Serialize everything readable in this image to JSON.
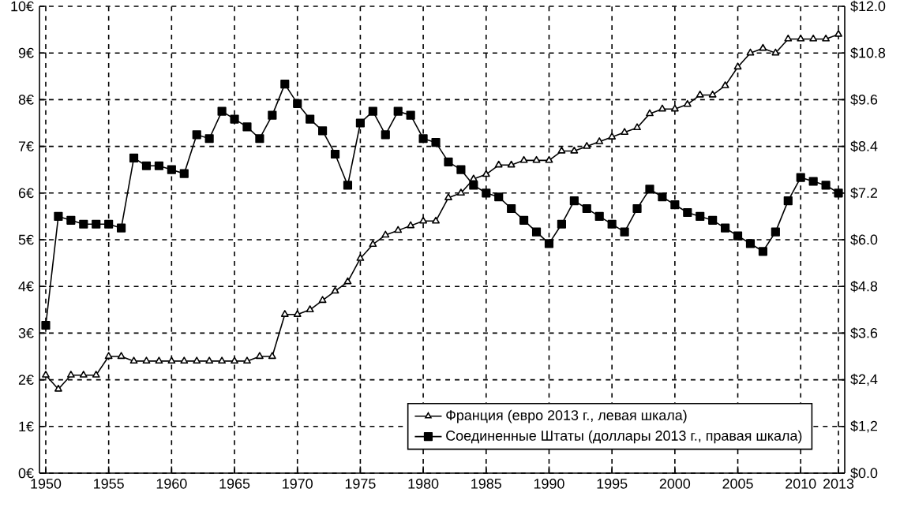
{
  "chart_data": {
    "type": "line",
    "x": [
      1950,
      1951,
      1952,
      1953,
      1954,
      1955,
      1956,
      1957,
      1958,
      1959,
      1960,
      1961,
      1962,
      1963,
      1964,
      1965,
      1966,
      1967,
      1968,
      1969,
      1970,
      1971,
      1972,
      1973,
      1974,
      1975,
      1976,
      1977,
      1978,
      1979,
      1980,
      1981,
      1982,
      1983,
      1984,
      1985,
      1986,
      1987,
      1988,
      1989,
      1990,
      1991,
      1992,
      1993,
      1994,
      1995,
      1996,
      1997,
      1998,
      1999,
      2000,
      2001,
      2002,
      2003,
      2004,
      2005,
      2006,
      2007,
      2008,
      2009,
      2010,
      2011,
      2012,
      2013
    ],
    "series": [
      {
        "name": "Франция (евро 2013 г., левая шкала)",
        "color": "#000000",
        "marker": "triangle",
        "values": [
          2.1,
          1.8,
          2.1,
          2.1,
          2.1,
          2.5,
          2.5,
          2.4,
          2.4,
          2.4,
          2.4,
          2.4,
          2.4,
          2.4,
          2.4,
          2.4,
          2.4,
          2.5,
          2.5,
          3.4,
          3.4,
          3.5,
          3.7,
          3.9,
          4.1,
          4.6,
          4.9,
          5.1,
          5.2,
          5.3,
          5.4,
          5.4,
          5.9,
          6.0,
          6.3,
          6.4,
          6.6,
          6.6,
          6.7,
          6.7,
          6.7,
          6.9,
          6.9,
          7.0,
          7.1,
          7.2,
          7.3,
          7.4,
          7.7,
          7.8,
          7.8,
          7.9,
          8.1,
          8.1,
          8.3,
          8.7,
          9.0,
          9.1,
          9.0,
          9.3,
          9.3,
          9.3,
          9.3,
          9.4
        ]
      },
      {
        "name": "Соединенные Штаты (доллары 2013 г., правая шкала)",
        "color": "#000000",
        "marker": "square",
        "axis": "y2",
        "values": [
          3.8,
          6.6,
          6.5,
          6.4,
          6.4,
          6.4,
          6.3,
          8.1,
          7.9,
          7.9,
          7.8,
          7.7,
          8.7,
          8.6,
          9.3,
          9.1,
          8.9,
          8.6,
          9.2,
          10.0,
          9.5,
          9.1,
          8.8,
          8.2,
          7.4,
          9.0,
          9.3,
          8.7,
          9.3,
          9.2,
          8.6,
          8.5,
          8.0,
          7.8,
          7.4,
          7.2,
          7.1,
          6.8,
          6.5,
          6.2,
          5.9,
          6.4,
          7.0,
          6.8,
          6.6,
          6.4,
          6.2,
          6.8,
          7.3,
          7.1,
          6.9,
          6.7,
          6.6,
          6.5,
          6.3,
          6.1,
          5.9,
          5.7,
          6.2,
          7.0,
          7.6,
          7.5,
          7.4,
          7.2
        ]
      }
    ],
    "xlim": [
      1949.5,
      2013.5
    ],
    "xticks": [
      1950,
      1955,
      1960,
      1965,
      1970,
      1975,
      1980,
      1985,
      1990,
      1995,
      2000,
      2005,
      2010,
      2013
    ],
    "ylim": [
      0,
      10
    ],
    "yticks": [
      {
        "value": 0,
        "label": "0€"
      },
      {
        "value": 1,
        "label": "1€"
      },
      {
        "value": 2,
        "label": "2€"
      },
      {
        "value": 3,
        "label": "3€"
      },
      {
        "value": 4,
        "label": "4€"
      },
      {
        "value": 5,
        "label": "5€"
      },
      {
        "value": 6,
        "label": "6€"
      },
      {
        "value": 7,
        "label": "7€"
      },
      {
        "value": 8,
        "label": "8€"
      },
      {
        "value": 9,
        "label": "9€"
      },
      {
        "value": 10,
        "label": "10€"
      }
    ],
    "y2lim": [
      0,
      12
    ],
    "y2ticks": [
      {
        "value": 0,
        "label": "$0.0"
      },
      {
        "value": 1.2,
        "label": "$1,2"
      },
      {
        "value": 2.4,
        "label": "$2,4"
      },
      {
        "value": 3.6,
        "label": "$3.6"
      },
      {
        "value": 4.8,
        "label": "$4.8"
      },
      {
        "value": 6,
        "label": "$6.0"
      },
      {
        "value": 7.2,
        "label": "$7.2"
      },
      {
        "value": 8.4,
        "label": "$8.4"
      },
      {
        "value": 9.6,
        "label": "$9.6"
      },
      {
        "value": 10.8,
        "label": "$10.8"
      },
      {
        "value": 12,
        "label": "$12.0"
      }
    ],
    "grid": true,
    "legend": "bottom right"
  }
}
